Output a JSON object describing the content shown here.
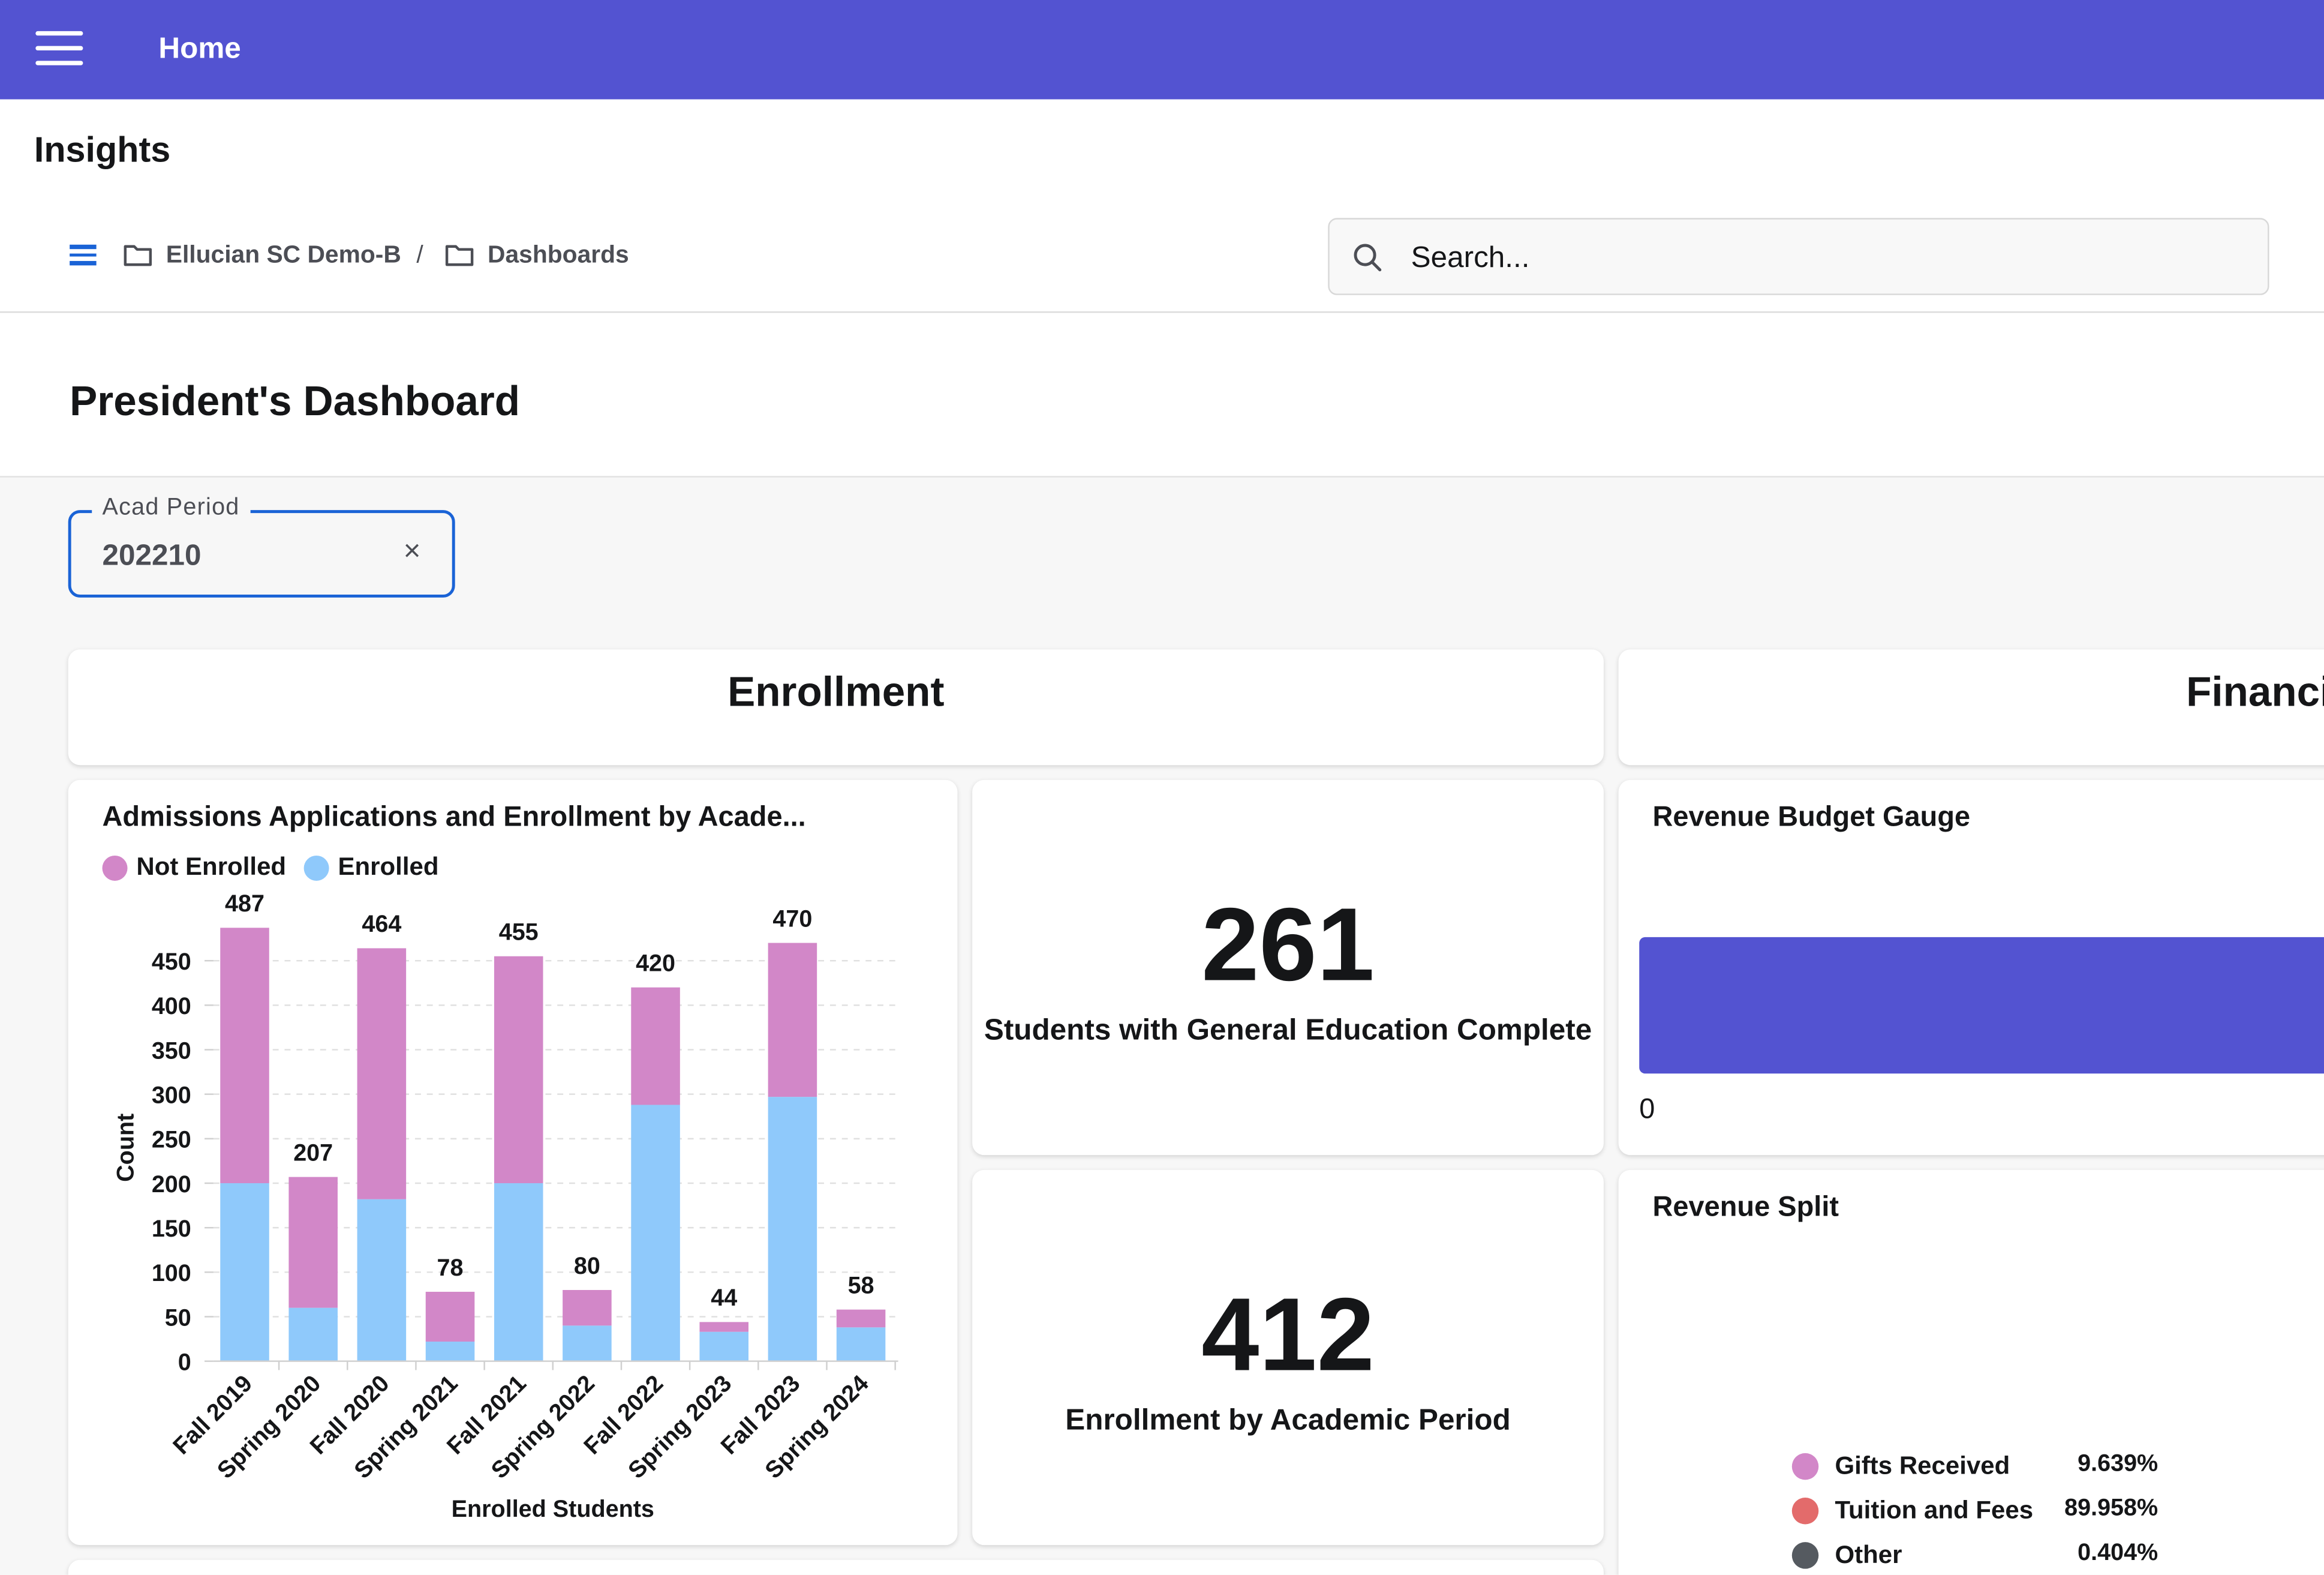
{
  "topbar": {
    "home_label": "Home"
  },
  "header": {
    "title": "Insights",
    "breadcrumb": [
      "Ellucian SC Demo-B",
      "Dashboards"
    ],
    "search_placeholder": "Search..."
  },
  "dashboard": {
    "title": "President's Dashboard"
  },
  "filter": {
    "label": "Acad Period",
    "value": "202210",
    "clear_glyph": "×"
  },
  "sections": {
    "enrollment": "Enrollment",
    "financials": "Financials"
  },
  "colors": {
    "accent": "#5353d1",
    "not_enrolled": "#d287c8",
    "enrolled": "#8fc9fb",
    "link": "#1a63d6"
  },
  "chart_title": "Admissions Applications and Enrollment by Acade...",
  "chart_data": {
    "type": "bar",
    "stacked": true,
    "title": "Admissions Applications and Enrollment by Acade...",
    "xlabel": "Enrolled Students",
    "ylabel": "Count",
    "ylim": [
      0,
      487
    ],
    "yticks": [
      0,
      50,
      100,
      150,
      200,
      250,
      300,
      350,
      400,
      450
    ],
    "grid": true,
    "legend_position": "top-left",
    "categories": [
      "Fall 2019",
      "Spring 2020",
      "Fall 2020",
      "Spring 2021",
      "Fall 2021",
      "Spring 2022",
      "Fall 2022",
      "Spring 2023",
      "Fall 2023",
      "Spring 2024"
    ],
    "series": [
      {
        "name": "Enrolled",
        "values": [
          200,
          60,
          182,
          22,
          200,
          40,
          288,
          33,
          297,
          38
        ]
      },
      {
        "name": "Not Enrolled",
        "values": [
          287,
          147,
          282,
          56,
          255,
          40,
          132,
          11,
          173,
          20
        ]
      }
    ],
    "totals": [
      487,
      207,
      464,
      78,
      455,
      80,
      420,
      44,
      470,
      58
    ]
  },
  "kpis": [
    {
      "value": "261",
      "label": "Students with General Education Complete"
    },
    {
      "value": "412",
      "label": "Enrollment by Academic Period"
    }
  ],
  "revenue_gauge": {
    "title": "Revenue Budget Gauge",
    "min_label": "0"
  },
  "revenue_split": {
    "title": "Revenue Split",
    "items": [
      {
        "label": "Gifts Received",
        "pct": "9.639%",
        "color": "#d287c8"
      },
      {
        "label": "Tuition and Fees",
        "pct": "89.958%",
        "color": "#e36b6b"
      },
      {
        "label": "Other",
        "pct": "0.404%",
        "color": "#555a60"
      }
    ]
  }
}
